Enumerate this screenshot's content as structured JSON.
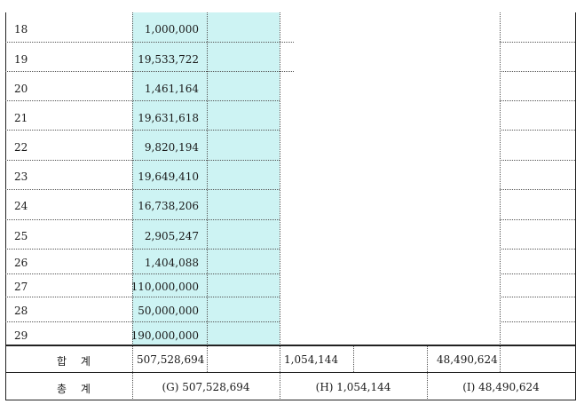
{
  "rows": [
    {
      "no": "18",
      "amount": "1,000,000"
    },
    {
      "no": "19",
      "amount": "19,533,722"
    },
    {
      "no": "20",
      "amount": "1,461,164"
    },
    {
      "no": "21",
      "amount": "19,631,618"
    },
    {
      "no": "22",
      "amount": "9,820,194"
    },
    {
      "no": "23",
      "amount": "19,649,410"
    },
    {
      "no": "24",
      "amount": "16,738,206"
    },
    {
      "no": "25",
      "amount": "2,905,247"
    },
    {
      "no": "26",
      "amount": "1,404,088"
    },
    {
      "no": "27",
      "amount": "110,000,000"
    },
    {
      "no": "28",
      "amount": "50,000,000"
    },
    {
      "no": "29",
      "amount": "190,000,000"
    }
  ],
  "subtotal": {
    "label": "합 계",
    "col_g": "507,528,694",
    "col_h": "1,054,144",
    "col_i": "48,490,624"
  },
  "total": {
    "label": "총 계",
    "col_g": "(G) 507,528,694",
    "col_h": "(H) 1,054,144",
    "col_i": "(I) 48,490,624"
  }
}
